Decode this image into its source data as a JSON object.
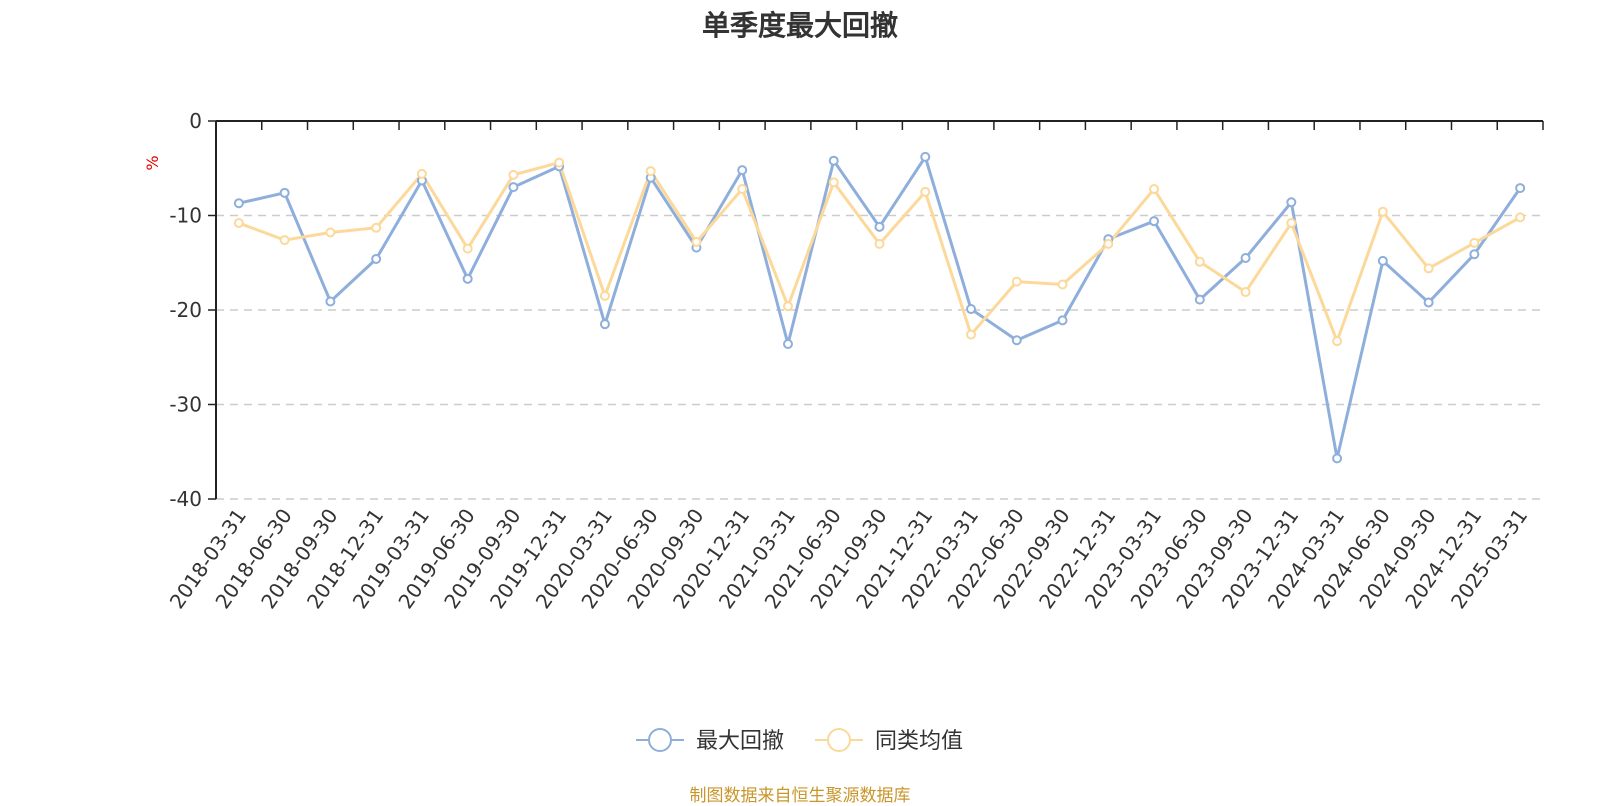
{
  "source_text": "制图数据来自恒生聚源数据库",
  "chart_data": {
    "type": "line",
    "title": "单季度最大回撤",
    "xlabel": "",
    "ylabel": "%",
    "ylim": [
      -40,
      0
    ],
    "yticks": [
      0,
      -10,
      -20,
      -30,
      -40
    ],
    "grid": true,
    "legend_position": "bottom-center",
    "categories": [
      "2018-03-31",
      "2018-06-30",
      "2018-09-30",
      "2018-12-31",
      "2019-03-31",
      "2019-06-30",
      "2019-09-30",
      "2019-12-31",
      "2020-03-31",
      "2020-06-30",
      "2020-09-30",
      "2020-12-31",
      "2021-03-31",
      "2021-06-30",
      "2021-09-30",
      "2021-12-31",
      "2022-03-31",
      "2022-06-30",
      "2022-09-30",
      "2022-12-31",
      "2023-03-31",
      "2023-06-30",
      "2023-09-30",
      "2023-12-31",
      "2024-03-31",
      "2024-06-30",
      "2024-09-30",
      "2024-12-31",
      "2025-03-31"
    ],
    "series": [
      {
        "name": "最大回撤",
        "color": "#8eaedb",
        "values": [
          -8.7,
          -7.6,
          -19.1,
          -14.6,
          -6.3,
          -16.7,
          -7.0,
          -4.8,
          -21.5,
          -6.0,
          -13.4,
          -5.2,
          -23.6,
          -4.2,
          -11.2,
          -3.8,
          -19.9,
          -23.2,
          -21.1,
          -12.5,
          -10.6,
          -18.9,
          -14.5,
          -8.6,
          -35.7,
          -14.8,
          -19.2,
          -14.1,
          -7.1
        ]
      },
      {
        "name": "同类均值",
        "color": "#fcd99a",
        "values": [
          -10.8,
          -12.6,
          -11.8,
          -11.3,
          -5.6,
          -13.5,
          -5.7,
          -4.4,
          -18.5,
          -5.3,
          -12.8,
          -7.2,
          -19.6,
          -6.5,
          -13.0,
          -7.5,
          -22.6,
          -17.0,
          -17.3,
          -13.0,
          -7.2,
          -14.9,
          -18.1,
          -10.8,
          -23.3,
          -9.6,
          -15.6,
          -12.9,
          -10.2
        ]
      }
    ]
  }
}
